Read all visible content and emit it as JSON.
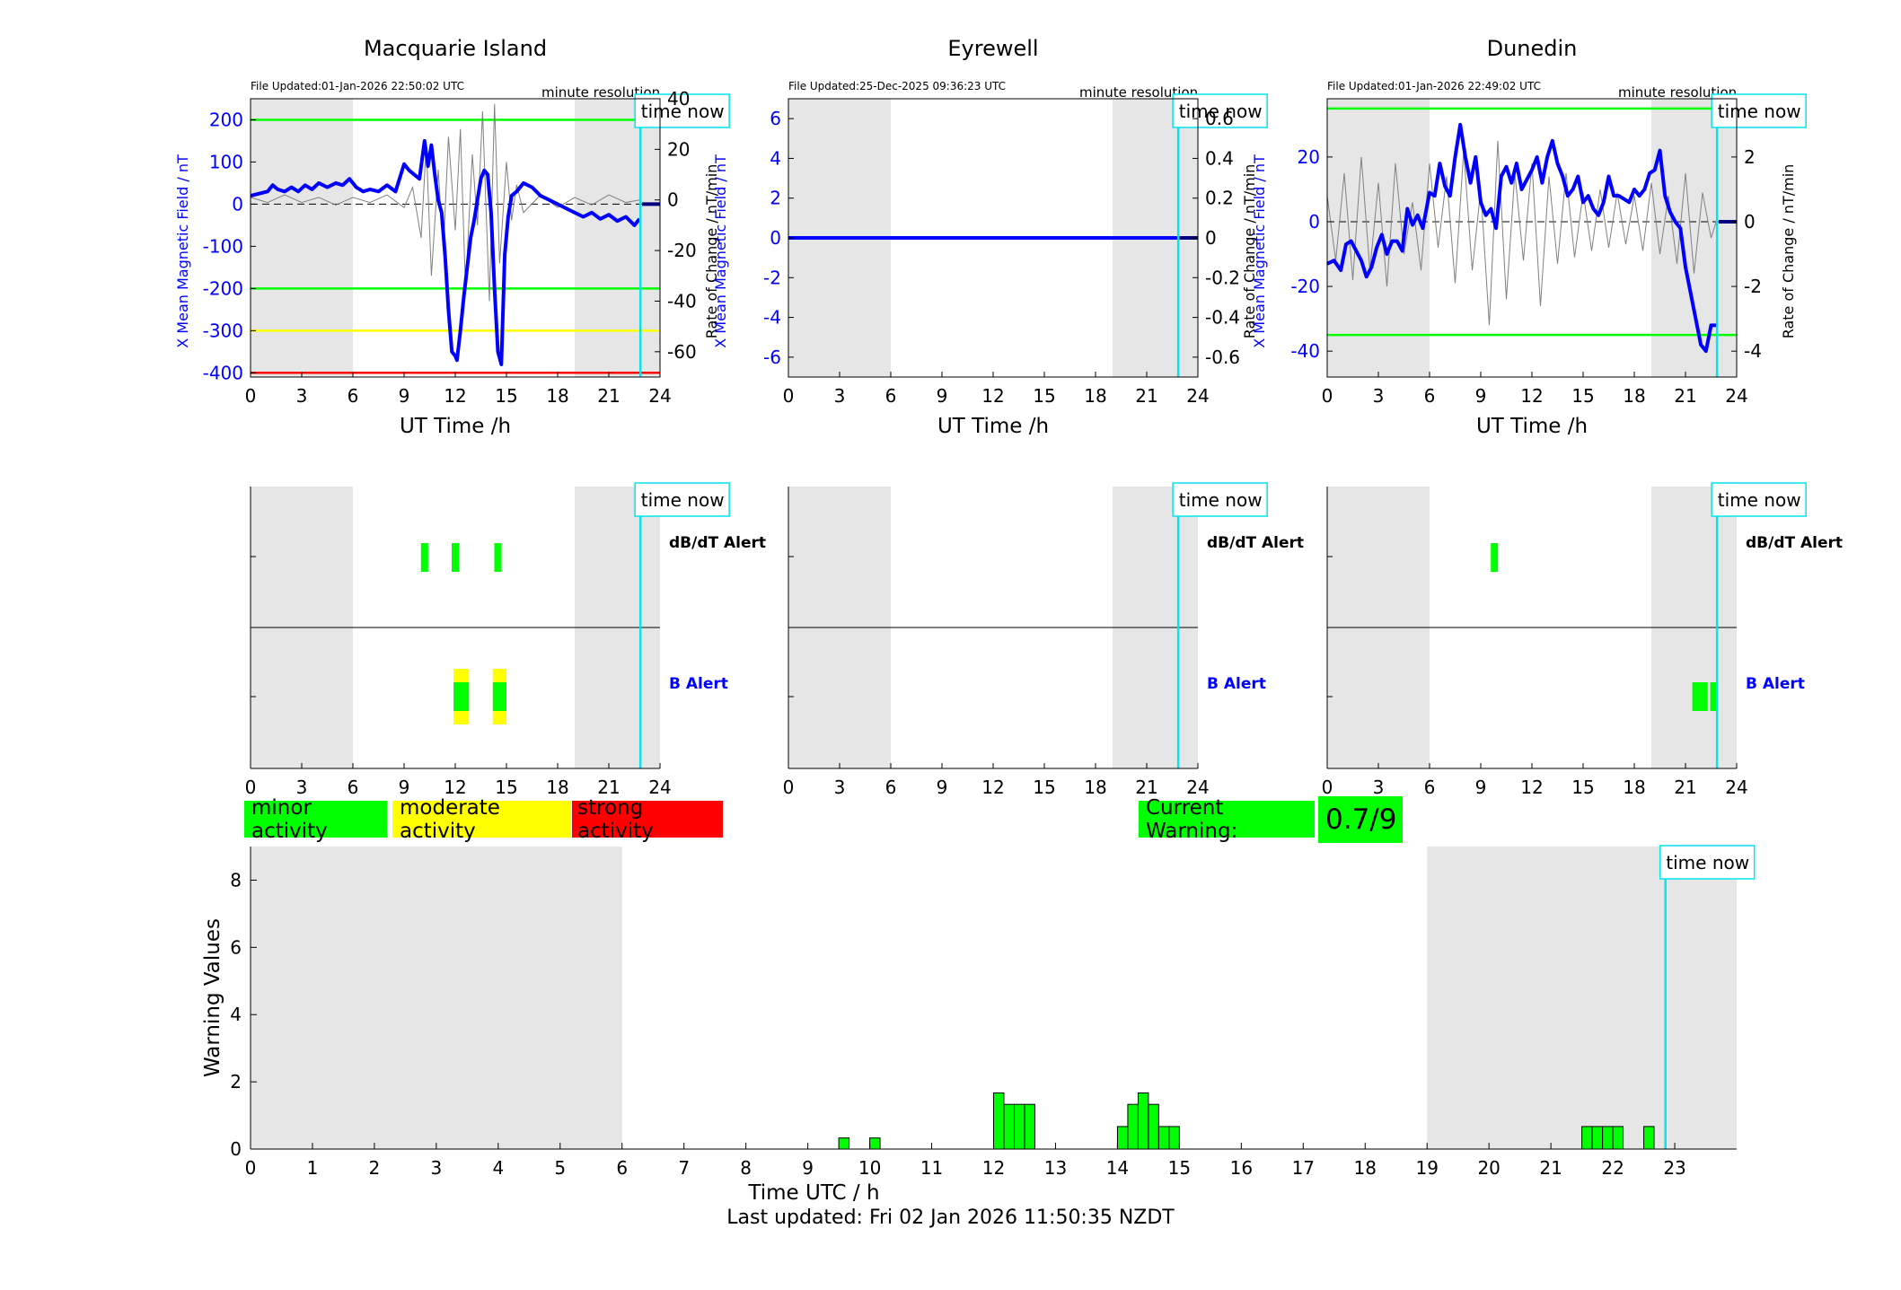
{
  "colors": {
    "shade": "#e6e6e6",
    "mean": "#0000ff",
    "rate": "#808080",
    "now": "#00e5ee",
    "minor": "#00ff00",
    "moderate": "#ffff00",
    "strong": "#ff0000",
    "blue_label": "#0000ff"
  },
  "now_label": "time now",
  "now_hour": 22.85,
  "common": {
    "x_label": "UT Time /h",
    "resolution": "minute resolution",
    "left_axis_label": "X Mean Magnetic Field / nT",
    "right_axis_label": "Rate of Change / nT/min",
    "x_ticks": [
      "0",
      "3",
      "6",
      "9",
      "12",
      "15",
      "18",
      "21",
      "24"
    ],
    "dbdt_label": "dB/dT Alert",
    "b_label": "B Alert"
  },
  "legend": {
    "minor": "minor activity",
    "moderate": "moderate activity",
    "strong": "strong activity"
  },
  "current_warning": {
    "label": "Current Warning:",
    "value": "0.7/9"
  },
  "footer": "Last updated: Fri 02 Jan 2026 11:50:35 NZDT",
  "chart_data": [
    {
      "type": "line",
      "title": "Macquarie Island",
      "updated": "File Updated:01-Jan-2026 22:50:02 UTC",
      "xlim": [
        0,
        24
      ],
      "ylim": [
        -410,
        250
      ],
      "ylim_right": [
        -70,
        40
      ],
      "y_ticks": [
        200,
        100,
        0,
        -100,
        -200,
        -300,
        -400
      ],
      "y_tick_labels": [
        "200",
        "100",
        "0",
        "-100",
        "-200",
        "-300",
        "-400"
      ],
      "y2_ticks": [
        40,
        20,
        0,
        -20,
        -40,
        -60
      ],
      "y2_tick_labels": [
        "40",
        "20",
        "0",
        "-20",
        "-40",
        "-60"
      ],
      "shading": [
        [
          0,
          6
        ],
        [
          19,
          24
        ]
      ],
      "thresholds": [
        {
          "y": 200,
          "color": "#00ff00"
        },
        {
          "y": -200,
          "color": "#00ff00"
        },
        {
          "y": -300,
          "color": "#ffff00"
        },
        {
          "y": -400,
          "color": "#ff0000"
        }
      ],
      "mean": {
        "x": [
          0,
          0.5,
          1,
          1.3,
          1.6,
          2,
          2.4,
          2.8,
          3.2,
          3.6,
          4,
          4.5,
          5,
          5.4,
          5.8,
          6.2,
          6.6,
          7,
          7.5,
          8,
          8.5,
          9,
          9.3,
          9.6,
          9.9,
          10.2,
          10.4,
          10.6,
          10.8,
          11,
          11.2,
          11.4,
          11.6,
          11.8,
          12,
          12.1,
          12.3,
          12.5,
          12.7,
          12.9,
          13.1,
          13.3,
          13.5,
          13.7,
          13.9,
          14.1,
          14.3,
          14.5,
          14.7,
          14.9,
          15.1,
          15.3,
          15.6,
          16,
          16.5,
          17,
          17.5,
          18,
          18.5,
          19,
          19.5,
          20,
          20.5,
          21,
          21.5,
          22,
          22.5,
          22.8
        ],
        "y": [
          20,
          25,
          30,
          45,
          35,
          30,
          40,
          30,
          45,
          35,
          50,
          40,
          50,
          45,
          60,
          40,
          30,
          35,
          30,
          45,
          30,
          95,
          80,
          70,
          60,
          150,
          90,
          140,
          70,
          10,
          -20,
          -120,
          -250,
          -350,
          -360,
          -370,
          -300,
          -220,
          -150,
          -80,
          -40,
          10,
          60,
          80,
          70,
          -20,
          -200,
          -350,
          -380,
          -120,
          -30,
          20,
          30,
          50,
          40,
          20,
          10,
          0,
          -10,
          -20,
          -30,
          -20,
          -35,
          -25,
          -40,
          -30,
          -50,
          -35
        ],
        "y_end_marker": 0
      },
      "rate": {
        "x": [
          0,
          1,
          2,
          3,
          4,
          5,
          6,
          7,
          8,
          9,
          9.5,
          10,
          10.3,
          10.6,
          11,
          11.3,
          11.6,
          12,
          12.3,
          12.6,
          13,
          13.3,
          13.6,
          14,
          14.3,
          14.6,
          15,
          15.3,
          15.6,
          16,
          17,
          18,
          19,
          20,
          21,
          22,
          22.8
        ],
        "y": [
          1,
          -1,
          2,
          -1,
          1,
          -2,
          1,
          -1,
          2,
          -3,
          5,
          -15,
          22,
          -30,
          12,
          -20,
          25,
          -12,
          28,
          -35,
          18,
          -10,
          35,
          -40,
          38,
          -25,
          15,
          -8,
          6,
          -5,
          2,
          -3,
          1,
          -2,
          2,
          -1,
          0
        ]
      },
      "dbdt_alerts": [
        {
          "x": 10.2,
          "level": "minor"
        },
        {
          "x": 12.0,
          "level": "minor"
        },
        {
          "x": 14.5,
          "level": "minor"
        }
      ],
      "b_alerts": [
        {
          "x0": 11.9,
          "x1": 12.8,
          "level": "moderate"
        },
        {
          "x0": 14.2,
          "x1": 15.0,
          "level": "moderate"
        },
        {
          "x0": 11.9,
          "x1": 12.8,
          "level": "minor"
        },
        {
          "x0": 14.2,
          "x1": 15.0,
          "level": "minor"
        }
      ]
    },
    {
      "type": "line",
      "title": "Eyrewell",
      "updated": "File Updated:25-Dec-2025 09:36:23 UTC",
      "xlim": [
        0,
        24
      ],
      "ylim": [
        -7,
        7
      ],
      "ylim_right": [
        -0.7,
        0.7
      ],
      "y_ticks": [
        6,
        4,
        2,
        0,
        -2,
        -4,
        -6
      ],
      "y_tick_labels": [
        "6",
        "4",
        "2",
        "0",
        "-2",
        "-4",
        "-6"
      ],
      "y2_ticks": [
        0.6,
        0.4,
        0.2,
        0,
        -0.2,
        -0.4,
        -0.6
      ],
      "y2_tick_labels": [
        "0.6",
        "0.4",
        "0.2",
        "0",
        "-0.2",
        "-0.4",
        "-0.6"
      ],
      "shading": [
        [
          0,
          6
        ],
        [
          19,
          24
        ]
      ],
      "thresholds": [],
      "mean": {
        "x": [
          0,
          24
        ],
        "y": [
          0,
          0
        ],
        "y_end_marker": 0
      },
      "rate": {
        "x": [
          0,
          24
        ],
        "y": [
          0,
          0
        ]
      },
      "dbdt_alerts": [],
      "b_alerts": []
    },
    {
      "type": "line",
      "title": "Dunedin",
      "updated": "File Updated:01-Jan-2026 22:49:02 UTC",
      "xlim": [
        0,
        24
      ],
      "ylim": [
        -48,
        38
      ],
      "ylim_right": [
        -4.8,
        3.8
      ],
      "y_ticks": [
        20,
        0,
        -20,
        -40
      ],
      "y_tick_labels": [
        "20",
        "0",
        "-20",
        "-40"
      ],
      "y2_ticks": [
        2,
        0,
        -2,
        -4
      ],
      "y2_tick_labels": [
        "2",
        "0",
        "-2",
        "-4"
      ],
      "shading": [
        [
          0,
          6
        ],
        [
          19,
          24
        ]
      ],
      "thresholds": [
        {
          "y": 35,
          "color": "#00ff00"
        },
        {
          "y": -35,
          "color": "#00ff00"
        }
      ],
      "mean": {
        "x": [
          0,
          0.4,
          0.8,
          1.1,
          1.4,
          1.7,
          2,
          2.3,
          2.6,
          2.9,
          3.2,
          3.5,
          3.8,
          4.1,
          4.4,
          4.7,
          5,
          5.3,
          5.6,
          6,
          6.3,
          6.6,
          6.9,
          7.2,
          7.5,
          7.8,
          8.1,
          8.4,
          8.7,
          9,
          9.3,
          9.6,
          9.9,
          10.2,
          10.5,
          10.8,
          11.1,
          11.4,
          11.7,
          12,
          12.3,
          12.6,
          12.9,
          13.2,
          13.5,
          13.8,
          14.1,
          14.4,
          14.7,
          15,
          15.3,
          15.6,
          15.9,
          16.2,
          16.5,
          16.8,
          17.1,
          17.4,
          17.7,
          18,
          18.3,
          18.6,
          18.9,
          19.2,
          19.5,
          19.8,
          20.1,
          20.4,
          20.7,
          21,
          21.3,
          21.6,
          21.9,
          22.2,
          22.5,
          22.8
        ],
        "y": [
          -13,
          -12,
          -15,
          -7,
          -6,
          -9,
          -12,
          -17,
          -14,
          -8,
          -4,
          -10,
          -6,
          -6,
          -9,
          4,
          -1,
          2,
          -2,
          9,
          8,
          18,
          11,
          8,
          20,
          30,
          20,
          12,
          20,
          6,
          2,
          4,
          -2,
          14,
          17,
          12,
          18,
          10,
          13,
          16,
          20,
          12,
          20,
          25,
          18,
          14,
          8,
          10,
          14,
          6,
          8,
          4,
          2,
          6,
          14,
          8,
          8,
          7,
          6,
          10,
          8,
          10,
          15,
          16,
          22,
          8,
          3,
          0,
          -2,
          -14,
          -22,
          -30,
          -38,
          -40,
          -32,
          -32
        ],
        "y_end_marker": 0
      },
      "rate": {
        "x": [
          0,
          0.5,
          1,
          1.5,
          2,
          2.5,
          3,
          3.5,
          4,
          4.5,
          5,
          5.5,
          6,
          6.5,
          7,
          7.5,
          8,
          8.5,
          9,
          9.5,
          10,
          10.5,
          11,
          11.5,
          12,
          12.5,
          13,
          13.5,
          14,
          14.5,
          15,
          15.5,
          16,
          16.5,
          17,
          17.5,
          18,
          18.5,
          19,
          19.5,
          20,
          20.5,
          21,
          21.5,
          22,
          22.5,
          22.8
        ],
        "y": [
          0.8,
          -1.2,
          1.5,
          -1.8,
          2,
          -1.5,
          1.2,
          -2,
          1.8,
          -1,
          0.6,
          -1.5,
          1.8,
          -0.8,
          1.4,
          -1.9,
          2.2,
          -1.5,
          1,
          -3.2,
          2.5,
          -2.4,
          1.5,
          -1.2,
          1.8,
          -2.6,
          1.4,
          -1.3,
          1.5,
          -1.1,
          0.9,
          -0.9,
          1,
          -0.8,
          0.9,
          -0.7,
          0.8,
          -0.9,
          1.2,
          -1,
          0.8,
          -1.3,
          1.5,
          -1.6,
          0.9,
          -0.5,
          0
        ]
      },
      "dbdt_alerts": [
        {
          "x": 9.8,
          "level": "minor"
        }
      ],
      "b_alerts": [
        {
          "x0": 21.4,
          "x1": 22.3,
          "level": "minor"
        },
        {
          "x0": 22.45,
          "x1": 22.8,
          "level": "minor"
        }
      ]
    },
    {
      "type": "bar",
      "title": "",
      "xlabel": "Time UTC / h",
      "ylabel": "Warning Values",
      "xlim": [
        0,
        24
      ],
      "ylim": [
        0,
        9
      ],
      "y_ticks": [
        0,
        2,
        4,
        6,
        8
      ],
      "y_tick_labels": [
        "0",
        "2",
        "4",
        "6",
        "8"
      ],
      "x_ticks": [
        0,
        1,
        2,
        3,
        4,
        5,
        6,
        7,
        8,
        9,
        10,
        11,
        12,
        13,
        14,
        15,
        16,
        17,
        18,
        19,
        20,
        21,
        22,
        23
      ],
      "x_tick_labels": [
        "0",
        "1",
        "2",
        "3",
        "4",
        "5",
        "6",
        "7",
        "8",
        "9",
        "10",
        "11",
        "12",
        "13",
        "14",
        "15",
        "16",
        "17",
        "18",
        "19",
        "20",
        "21",
        "22",
        "23"
      ],
      "shading": [
        [
          0,
          6
        ],
        [
          19,
          24
        ]
      ],
      "bar_width": 0.166,
      "x": [
        9.583,
        10.083,
        12.083,
        12.25,
        12.417,
        12.583,
        14.083,
        14.25,
        14.417,
        14.583,
        14.75,
        14.917,
        21.583,
        21.75,
        21.917,
        22.083,
        22.583
      ],
      "values": [
        0.33,
        0.33,
        1.67,
        1.33,
        1.33,
        1.33,
        0.67,
        1.33,
        1.67,
        1.33,
        0.67,
        0.67,
        0.67,
        0.67,
        0.67,
        0.67,
        0.67
      ]
    }
  ]
}
